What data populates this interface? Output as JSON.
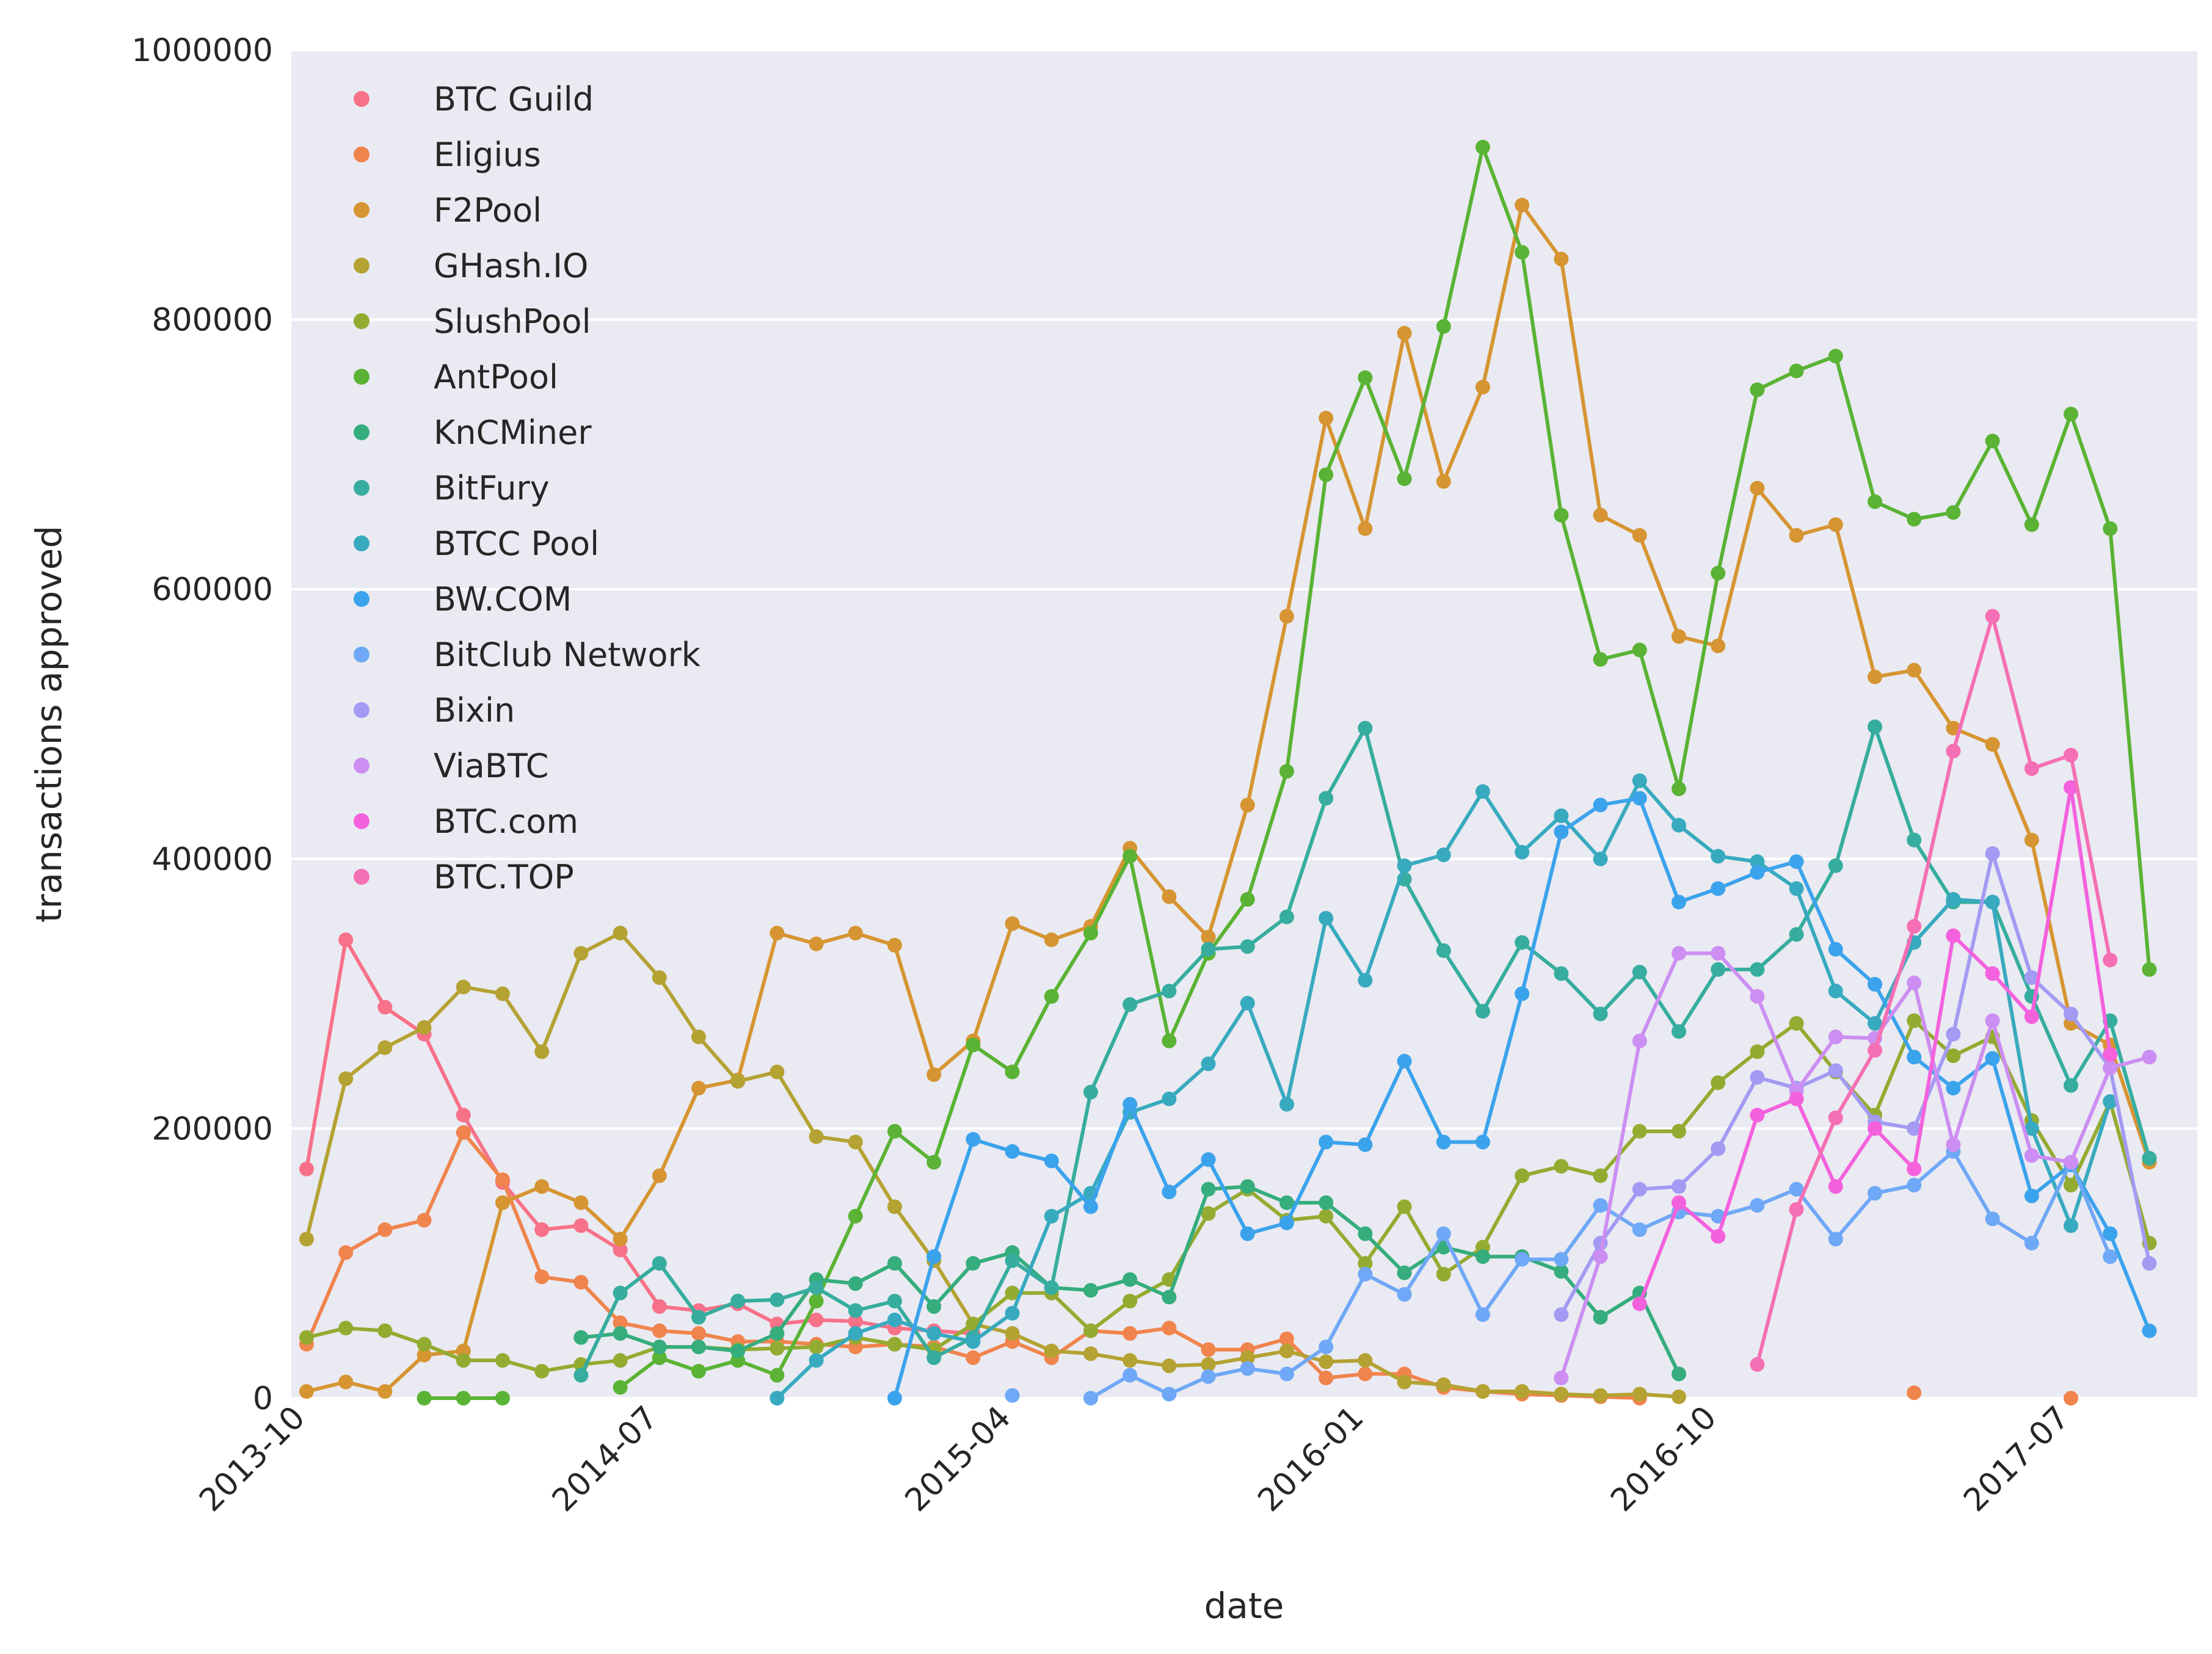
{
  "chart_data": {
    "type": "line",
    "xlabel": "date",
    "ylabel": "transactions approved",
    "ylim": [
      0,
      1000000
    ],
    "y_ticks": [
      "0",
      "200000",
      "400000",
      "600000",
      "800000",
      "1000000"
    ],
    "x_ticks": [
      {
        "label": "2013-10",
        "index": 0
      },
      {
        "label": "2014-07",
        "index": 9
      },
      {
        "label": "2015-04",
        "index": 18
      },
      {
        "label": "2016-01",
        "index": 27
      },
      {
        "label": "2016-10",
        "index": 36
      },
      {
        "label": "2017-07",
        "index": 45
      }
    ],
    "x": [
      "2013-10",
      "2013-11",
      "2013-12",
      "2014-01",
      "2014-02",
      "2014-03",
      "2014-04",
      "2014-05",
      "2014-06",
      "2014-07",
      "2014-08",
      "2014-09",
      "2014-10",
      "2014-11",
      "2014-12",
      "2015-01",
      "2015-02",
      "2015-03",
      "2015-04",
      "2015-05",
      "2015-06",
      "2015-07",
      "2015-08",
      "2015-09",
      "2015-10",
      "2015-11",
      "2015-12",
      "2016-01",
      "2016-02",
      "2016-03",
      "2016-04",
      "2016-05",
      "2016-06",
      "2016-07",
      "2016-08",
      "2016-09",
      "2016-10",
      "2016-11",
      "2016-12",
      "2017-01",
      "2017-02",
      "2017-03",
      "2017-04",
      "2017-05",
      "2017-06",
      "2017-07",
      "2017-08",
      "2017-09"
    ],
    "grid": true,
    "legend_position": "top-left",
    "series": [
      {
        "name": "BTC Guild",
        "color": "#f77189",
        "values": [
          170000,
          340000,
          290000,
          270000,
          210000,
          160000,
          125000,
          128000,
          110000,
          68000,
          65000,
          70000,
          55000,
          58000,
          57000,
          52000,
          50000,
          48000,
          null,
          null,
          null,
          null,
          null,
          null,
          null,
          null,
          null,
          null,
          null,
          null,
          null,
          null,
          null,
          null,
          null,
          null,
          null,
          null,
          null,
          null,
          null,
          null,
          null,
          null,
          null,
          null,
          null,
          null
        ]
      },
      {
        "name": "Eligius",
        "color": "#f0844d",
        "values": [
          40000,
          108000,
          125000,
          132000,
          197000,
          162000,
          90000,
          86000,
          56000,
          50000,
          48000,
          42000,
          42000,
          40000,
          38000,
          40000,
          38000,
          30000,
          42000,
          30000,
          50000,
          48000,
          52000,
          36000,
          36000,
          44000,
          15000,
          18000,
          18000,
          8000,
          5000,
          3000,
          2000,
          1000,
          0,
          null,
          null,
          null,
          null,
          null,
          null,
          4000,
          null,
          null,
          null,
          0,
          null,
          null
        ]
      },
      {
        "name": "F2Pool",
        "color": "#d69532",
        "values": [
          5000,
          12000,
          5000,
          32000,
          35000,
          145000,
          157000,
          145000,
          118000,
          165000,
          230000,
          236000,
          345000,
          337000,
          345000,
          336000,
          240000,
          265000,
          352000,
          340000,
          350000,
          408000,
          372000,
          342000,
          440000,
          580000,
          727000,
          645000,
          790000,
          680000,
          750000,
          885000,
          845000,
          655000,
          640000,
          565000,
          558000,
          675000,
          640000,
          648000,
          535000,
          540000,
          497000,
          485000,
          414000,
          278000,
          262000,
          175000
        ]
      },
      {
        "name": "GHash.IO",
        "color": "#b4a233",
        "values": [
          118000,
          237000,
          260000,
          275000,
          305000,
          300000,
          257000,
          330000,
          345000,
          312000,
          268000,
          235000,
          242000,
          194000,
          190000,
          142000,
          102000,
          55000,
          48000,
          35000,
          33000,
          28000,
          24000,
          25000,
          30000,
          35000,
          27000,
          28000,
          12000,
          10000,
          5000,
          5000,
          3000,
          2000,
          3000,
          1000,
          null,
          null,
          null,
          null,
          null,
          null,
          null,
          null,
          null,
          null,
          null,
          null
        ]
      },
      {
        "name": "SlushPool",
        "color": "#94ab31",
        "values": [
          45000,
          52000,
          50000,
          40000,
          28000,
          28000,
          20000,
          25000,
          28000,
          38000,
          38000,
          36000,
          37000,
          38000,
          45000,
          40000,
          36000,
          55000,
          78000,
          78000,
          50000,
          72000,
          88000,
          137000,
          155000,
          132000,
          135000,
          100000,
          142000,
          92000,
          112000,
          165000,
          172000,
          165000,
          198000,
          198000,
          234000,
          257000,
          278000,
          242000,
          210000,
          280000,
          254000,
          268000,
          206000,
          158000,
          220000,
          115000
        ]
      },
      {
        "name": "AntPool",
        "color": "#5ab334",
        "values": [
          null,
          null,
          null,
          0,
          0,
          0,
          null,
          null,
          8000,
          30000,
          20000,
          28000,
          17000,
          72000,
          135000,
          198000,
          175000,
          262000,
          242000,
          298000,
          345000,
          402000,
          265000,
          330000,
          370000,
          465000,
          685000,
          757000,
          682000,
          795000,
          928000,
          850000,
          655000,
          548000,
          555000,
          452000,
          612000,
          748000,
          762000,
          773000,
          665000,
          652000,
          657000,
          710000,
          648000,
          730000,
          645000,
          318000
        ]
      },
      {
        "name": "KnCMiner",
        "color": "#35ad7c",
        "values": [
          null,
          null,
          null,
          null,
          null,
          null,
          null,
          45000,
          48000,
          38000,
          38000,
          35000,
          48000,
          88000,
          85000,
          100000,
          68000,
          100000,
          108000,
          82000,
          80000,
          88000,
          75000,
          155000,
          157000,
          145000,
          145000,
          122000,
          93000,
          112000,
          105000,
          105000,
          94000,
          60000,
          78000,
          18000,
          null,
          null,
          null,
          null,
          null,
          null,
          null,
          null,
          null,
          null,
          null,
          null
        ]
      },
      {
        "name": "BitFury",
        "color": "#36ad9f",
        "values": [
          null,
          null,
          null,
          null,
          null,
          null,
          null,
          17000,
          78000,
          100000,
          60000,
          72000,
          73000,
          82000,
          65000,
          72000,
          30000,
          45000,
          102000,
          82000,
          227000,
          292000,
          302000,
          333000,
          335000,
          357000,
          445000,
          497000,
          385000,
          332000,
          287000,
          338000,
          315000,
          285000,
          316000,
          272000,
          318000,
          318000,
          344000,
          395000,
          498000,
          414000,
          368000,
          368000,
          298000,
          232000,
          280000,
          178000
        ]
      },
      {
        "name": "BTCC Pool",
        "color": "#38aabf",
        "values": [
          null,
          null,
          null,
          null,
          null,
          null,
          null,
          null,
          null,
          null,
          null,
          null,
          0,
          28000,
          48000,
          58000,
          48000,
          42000,
          63000,
          135000,
          152000,
          212000,
          222000,
          248000,
          293000,
          218000,
          356000,
          310000,
          395000,
          403000,
          450000,
          405000,
          432000,
          400000,
          458000,
          425000,
          402000,
          398000,
          378000,
          302000,
          278000,
          338000,
          370000,
          368000,
          200000,
          128000,
          220000,
          null
        ]
      },
      {
        "name": "BW.COM",
        "color": "#3ba3ec",
        "values": [
          null,
          null,
          null,
          null,
          null,
          null,
          null,
          null,
          null,
          null,
          null,
          null,
          null,
          null,
          null,
          0,
          105000,
          192000,
          183000,
          176000,
          142000,
          218000,
          153000,
          177000,
          122000,
          130000,
          190000,
          188000,
          250000,
          190000,
          190000,
          300000,
          420000,
          440000,
          445000,
          368000,
          378000,
          390000,
          398000,
          333000,
          307000,
          253000,
          230000,
          252000,
          150000,
          173000,
          122000,
          50000
        ]
      },
      {
        "name": "BitClub Network",
        "color": "#6fa8f6",
        "values": [
          null,
          null,
          null,
          null,
          null,
          null,
          null,
          null,
          null,
          null,
          null,
          null,
          null,
          null,
          null,
          null,
          null,
          null,
          2000,
          null,
          0,
          17000,
          3000,
          16000,
          22000,
          18000,
          38000,
          92000,
          77000,
          122000,
          62000,
          103000,
          103000,
          143000,
          125000,
          138000,
          135000,
          143000,
          155000,
          118000,
          152000,
          158000,
          183000,
          133000,
          115000,
          175000,
          105000,
          null
        ]
      },
      {
        "name": "Bixin",
        "color": "#a39af3",
        "values": [
          null,
          null,
          null,
          null,
          null,
          null,
          null,
          null,
          null,
          null,
          null,
          null,
          null,
          null,
          null,
          null,
          null,
          null,
          null,
          null,
          null,
          null,
          null,
          null,
          null,
          null,
          null,
          null,
          null,
          null,
          null,
          null,
          62000,
          115000,
          155000,
          157000,
          185000,
          238000,
          230000,
          243000,
          205000,
          200000,
          270000,
          404000,
          312000,
          285000,
          245000,
          100000
        ]
      },
      {
        "name": "ViaBTC",
        "color": "#cc8ef2",
        "values": [
          null,
          null,
          null,
          null,
          null,
          null,
          null,
          null,
          null,
          null,
          null,
          null,
          null,
          null,
          null,
          null,
          null,
          null,
          null,
          null,
          null,
          null,
          null,
          null,
          null,
          null,
          null,
          null,
          null,
          null,
          null,
          null,
          15000,
          105000,
          265000,
          330000,
          330000,
          298000,
          228000,
          268000,
          267000,
          308000,
          188000,
          280000,
          180000,
          175000,
          245000,
          253000
        ]
      },
      {
        "name": "BTC.com",
        "color": "#f461dd",
        "values": [
          null,
          null,
          null,
          null,
          null,
          null,
          null,
          null,
          null,
          null,
          null,
          null,
          null,
          null,
          null,
          null,
          null,
          null,
          null,
          null,
          null,
          null,
          null,
          null,
          null,
          null,
          null,
          null,
          null,
          null,
          null,
          null,
          null,
          null,
          70000,
          145000,
          120000,
          210000,
          222000,
          157000,
          200000,
          170000,
          343000,
          315000,
          283000,
          453000,
          255000,
          null
        ]
      },
      {
        "name": "BTC.TOP",
        "color": "#f56fb4",
        "values": [
          null,
          null,
          null,
          null,
          null,
          null,
          null,
          null,
          null,
          null,
          null,
          null,
          null,
          null,
          null,
          null,
          null,
          null,
          null,
          null,
          null,
          null,
          null,
          null,
          null,
          null,
          null,
          null,
          null,
          null,
          null,
          null,
          null,
          null,
          null,
          null,
          null,
          25000,
          140000,
          208000,
          258000,
          350000,
          480000,
          580000,
          467000,
          477000,
          325000,
          null
        ]
      }
    ]
  }
}
